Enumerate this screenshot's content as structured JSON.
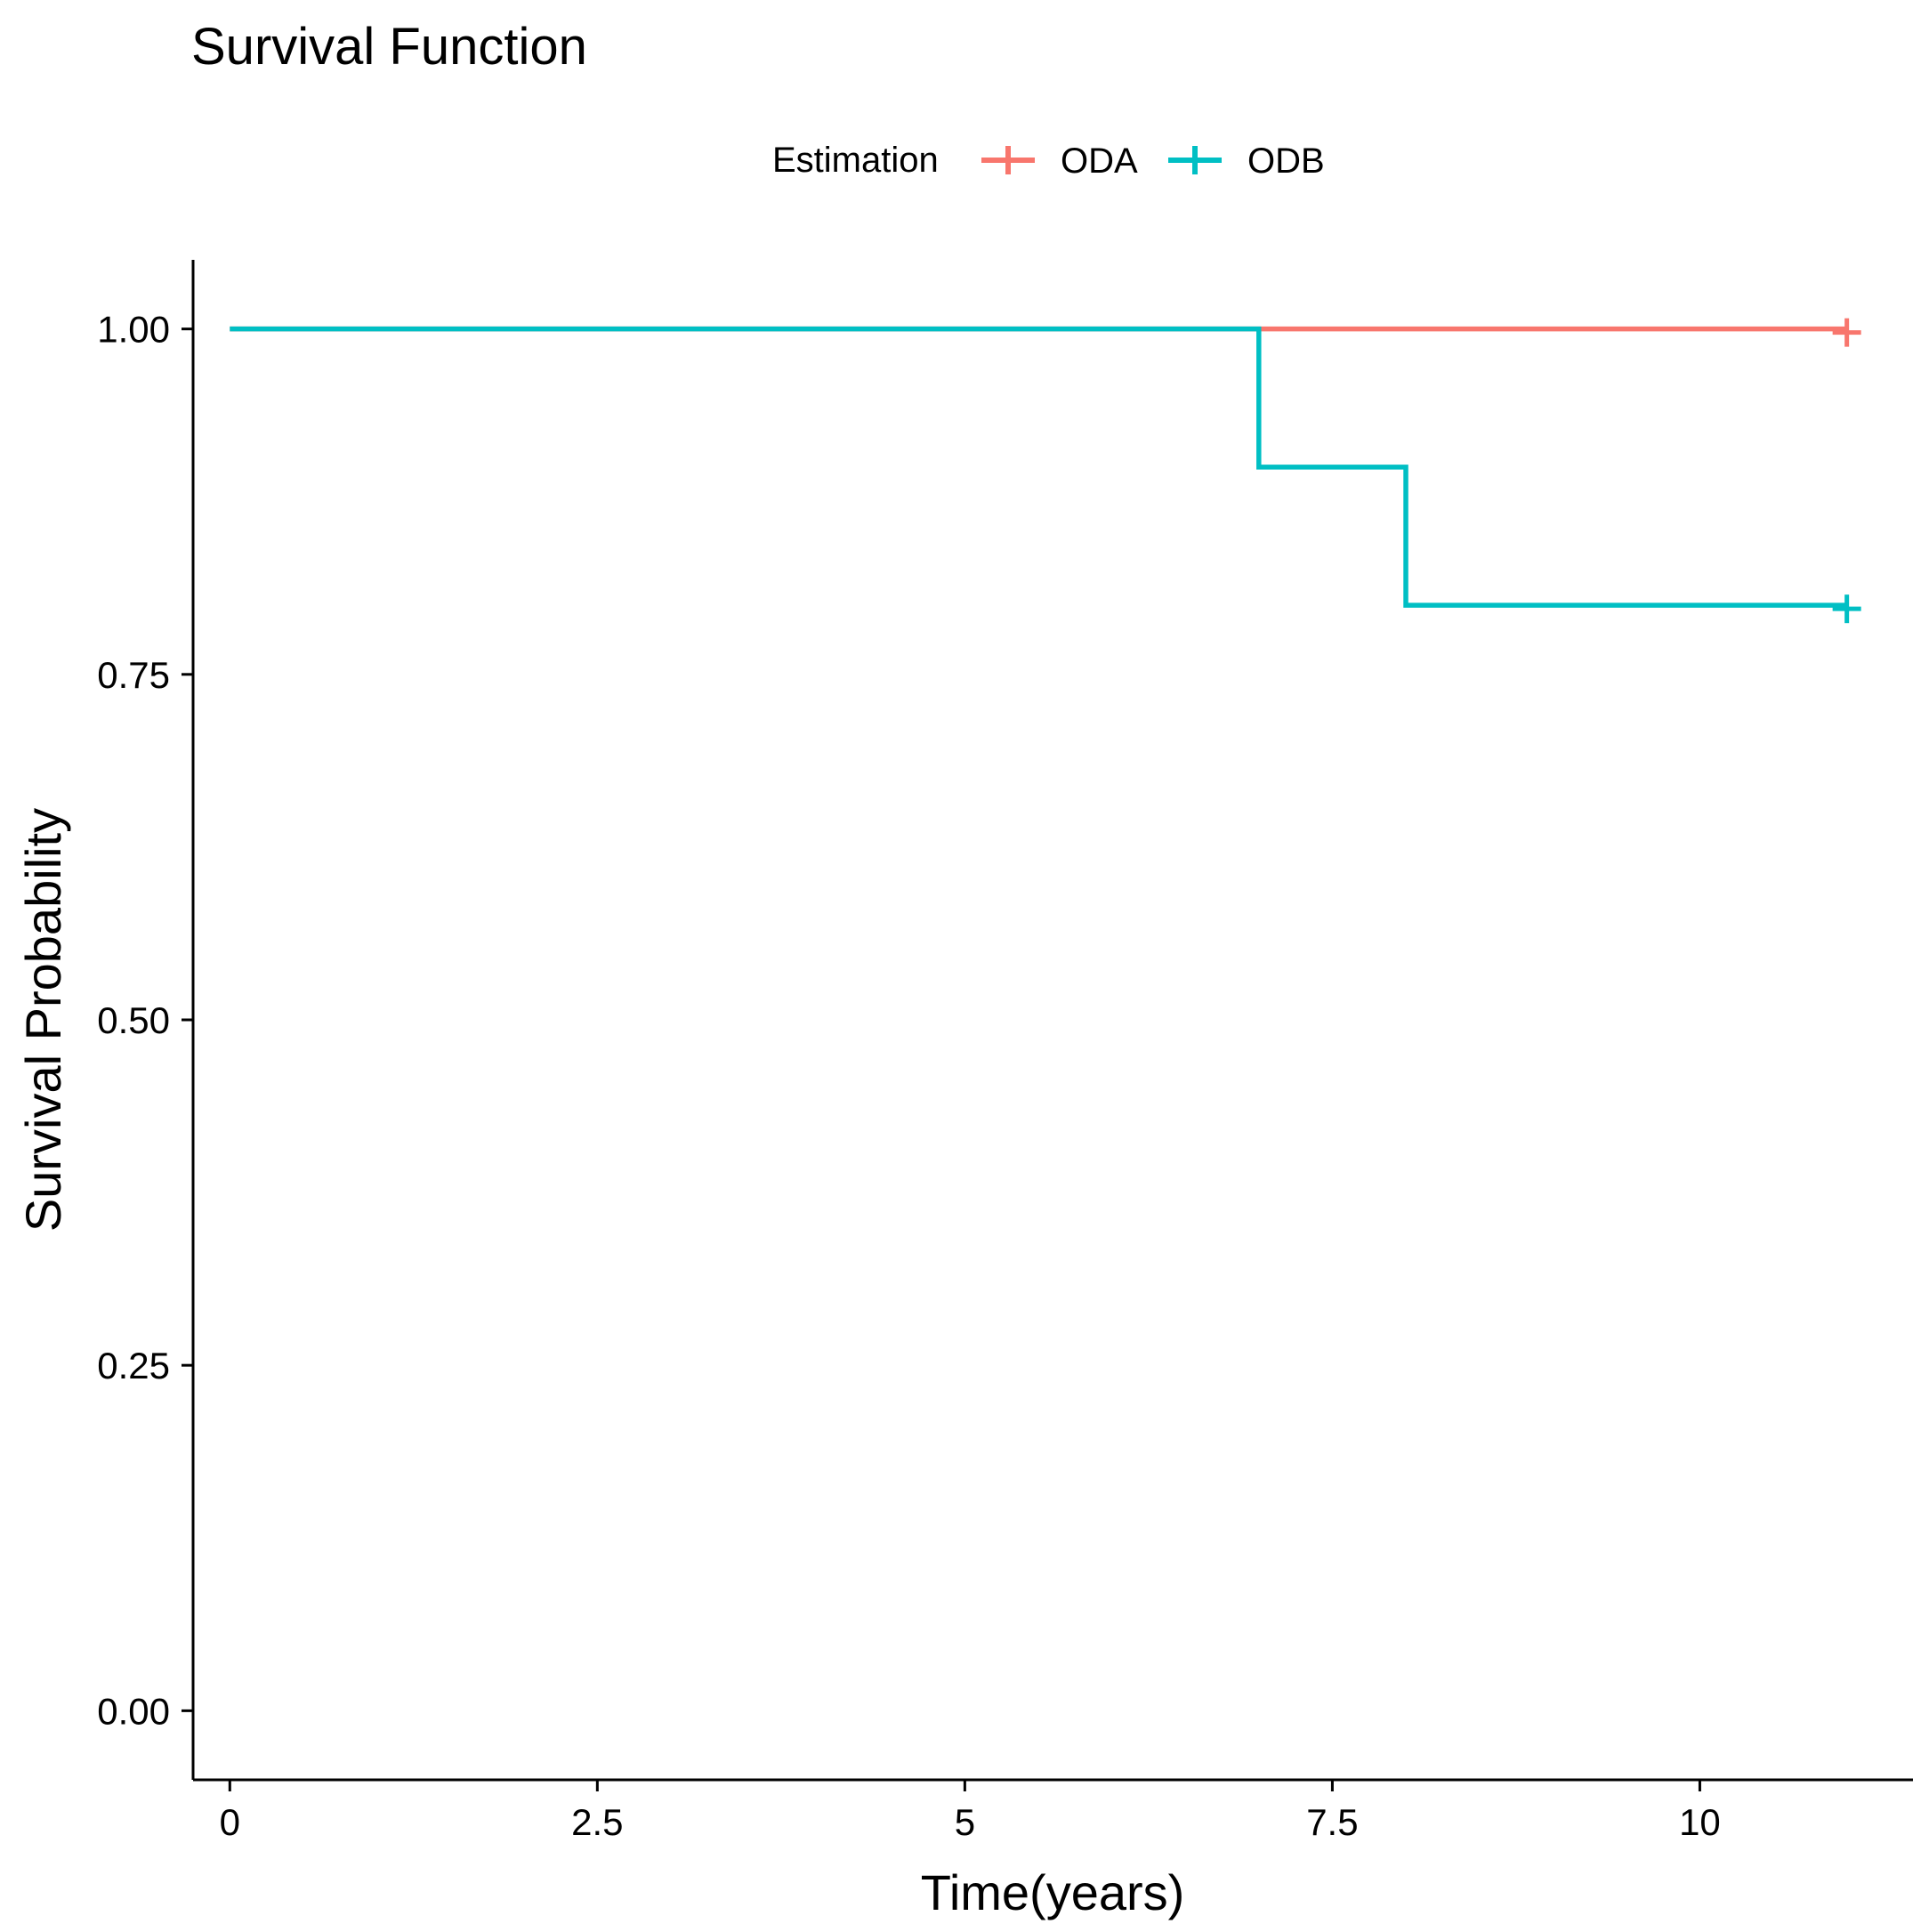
{
  "chart_data": {
    "type": "line",
    "step": true,
    "title": "Survival Function",
    "xlabel": "Time(years)",
    "ylabel": "Survival Probability",
    "xlim": [
      -0.25,
      11.45
    ],
    "ylim": [
      -0.05,
      1.05
    ],
    "xticks": [
      0,
      2.5,
      5,
      7.5,
      10
    ],
    "xtick_labels": [
      "0",
      "2.5",
      "5",
      "7.5",
      "10"
    ],
    "yticks": [
      0,
      0.25,
      0.5,
      0.75,
      1.0
    ],
    "ytick_labels": [
      "0.00",
      "0.25",
      "0.50",
      "0.75",
      "1.00"
    ],
    "grid": false,
    "legend": {
      "title": "Estimation",
      "position": "top"
    },
    "series": [
      {
        "name": "ODA",
        "color": "#F8766D",
        "x": [
          0,
          11
        ],
        "y": [
          1.0,
          1.0
        ],
        "censor_x": [
          11
        ],
        "censor_y": [
          1.0
        ]
      },
      {
        "name": "ODB",
        "color": "#00BFC4",
        "x": [
          0,
          7,
          8,
          11
        ],
        "y": [
          1.0,
          0.9,
          0.8,
          0.8
        ],
        "censor_x": [
          11
        ],
        "censor_y": [
          0.8
        ]
      }
    ]
  }
}
